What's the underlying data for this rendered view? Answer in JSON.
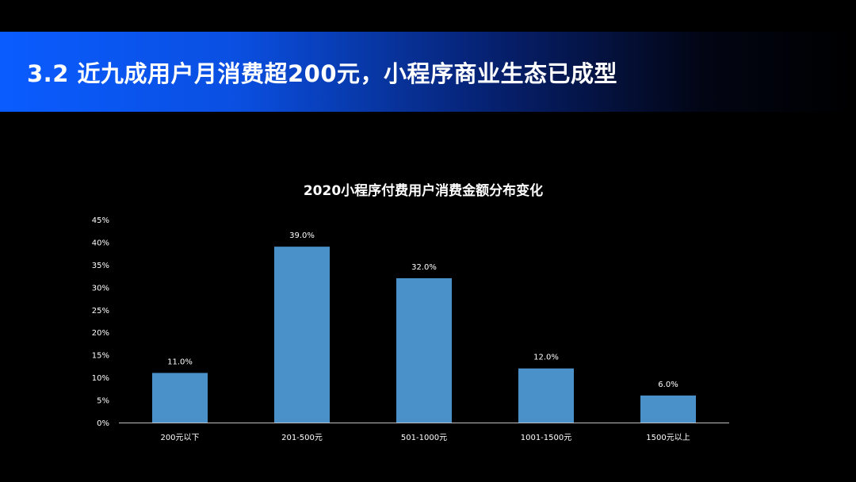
{
  "header": {
    "title": "3.2 近九成用户月消费超200元，小程序商业生态已成型"
  },
  "colors": {
    "bar": "#4a90c9",
    "axis": "#bfbfbf",
    "background": "#000000",
    "banner_start": "#0a5cff"
  },
  "chart_data": {
    "type": "bar",
    "title": "2020小程序付费用户消费金额分布变化",
    "categories": [
      "200元以下",
      "201-500元",
      "501-1000元",
      "1001-1500元",
      "1500元以上"
    ],
    "values": [
      11.0,
      39.0,
      32.0,
      12.0,
      6.0
    ],
    "value_labels": [
      "11.0%",
      "39.0%",
      "32.0%",
      "12.0%",
      "6.0%"
    ],
    "y_ticks": [
      "0%",
      "5%",
      "10%",
      "15%",
      "20%",
      "25%",
      "30%",
      "35%",
      "40%",
      "45%"
    ],
    "ylim": [
      0,
      45
    ],
    "xlabel": "",
    "ylabel": "",
    "grid": false,
    "legend": "none"
  }
}
